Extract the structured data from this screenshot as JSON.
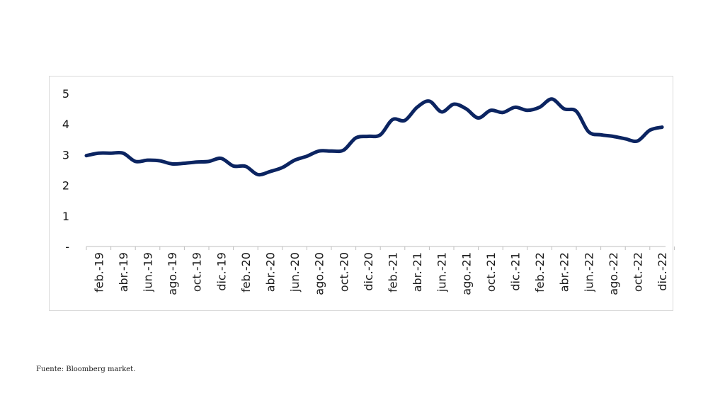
{
  "source": "Fuente: Bloomberg market.",
  "colors": {
    "line": "#0b2461",
    "frame": "#d9d9d9",
    "text": "#1a1a1a"
  },
  "chart_data": {
    "type": "line",
    "title": "",
    "xlabel": "",
    "ylabel": "",
    "ylim": [
      0,
      5
    ],
    "yticks": [
      {
        "value": 0,
        "label": "-"
      },
      {
        "value": 1,
        "label": "1"
      },
      {
        "value": 2,
        "label": "2"
      },
      {
        "value": 3,
        "label": "3"
      },
      {
        "value": 4,
        "label": "4"
      },
      {
        "value": 5,
        "label": "5"
      }
    ],
    "grid": false,
    "legend": "none",
    "categories": [
      "feb.-19",
      "abr.-19",
      "jun.-19",
      "ago.-19",
      "oct.-19",
      "dic.-19",
      "feb.-20",
      "abr.-20",
      "jun.-20",
      "ago.-20",
      "oct.-20",
      "dic.-20",
      "feb.-21",
      "abr.-21",
      "jun.-21",
      "ago.-21",
      "oct.-21",
      "dic.-21",
      "feb.-22",
      "abr.-22",
      "jun.-22",
      "ago.-22",
      "oct.-22",
      "dic.-22"
    ],
    "series": [
      {
        "x": [
          "2019-01",
          "2019-02",
          "2019-03",
          "2019-04",
          "2019-05",
          "2019-06",
          "2019-07",
          "2019-08",
          "2019-09",
          "2019-10",
          "2019-11",
          "2019-12",
          "2020-01",
          "2020-02",
          "2020-03",
          "2020-04",
          "2020-05",
          "2020-06",
          "2020-07",
          "2020-08",
          "2020-09",
          "2020-10",
          "2020-11",
          "2020-12",
          "2021-01",
          "2021-02",
          "2021-03",
          "2021-04",
          "2021-05",
          "2021-06",
          "2021-07",
          "2021-08",
          "2021-09",
          "2021-10",
          "2021-11",
          "2021-12",
          "2022-01",
          "2022-02",
          "2022-03",
          "2022-04",
          "2022-05",
          "2022-06",
          "2022-07",
          "2022-08",
          "2022-09",
          "2022-10",
          "2022-11",
          "2022-12"
        ],
        "values": [
          2.97,
          3.05,
          3.05,
          3.05,
          2.78,
          2.82,
          2.8,
          2.7,
          2.72,
          2.76,
          2.78,
          2.88,
          2.63,
          2.62,
          2.35,
          2.45,
          2.58,
          2.82,
          2.95,
          3.12,
          3.12,
          3.15,
          3.55,
          3.6,
          3.65,
          4.15,
          4.12,
          4.55,
          4.75,
          4.4,
          4.65,
          4.5,
          4.2,
          4.45,
          4.38,
          4.55,
          4.45,
          4.55,
          4.82,
          4.5,
          4.42,
          3.75,
          3.65,
          3.6,
          3.52,
          3.45,
          3.8,
          3.9
        ]
      }
    ]
  }
}
